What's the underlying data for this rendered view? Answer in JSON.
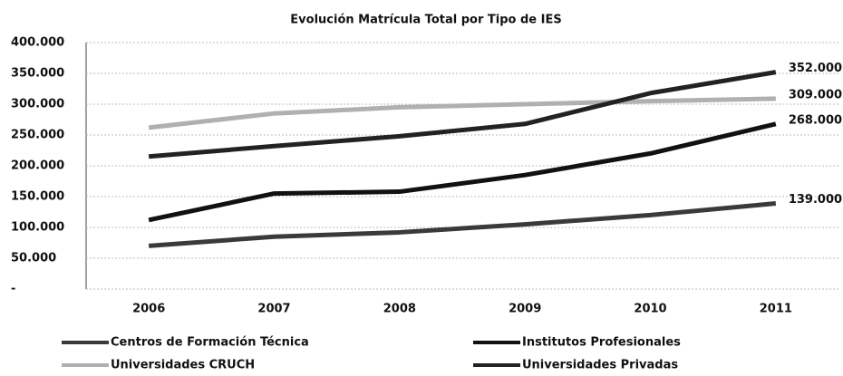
{
  "chart_data": {
    "type": "line",
    "title": "Evolución Matrícula Total por Tipo de IES",
    "categories": [
      "2006",
      "2007",
      "2008",
      "2009",
      "2010",
      "2011"
    ],
    "series": [
      {
        "name": "Centros de Formación Técnica",
        "color": "#3a3a3a",
        "values": [
          70000,
          85000,
          92000,
          105000,
          120000,
          139000
        ],
        "value_labels": [
          null,
          null,
          null,
          null,
          null,
          "139.000"
        ]
      },
      {
        "name": "Institutos Profesionales",
        "color": "#111111",
        "values": [
          112000,
          155000,
          158000,
          185000,
          220000,
          268000
        ],
        "value_labels": [
          null,
          null,
          null,
          null,
          null,
          "268.000,"
        ]
      },
      {
        "name": "Universidades CRUCH",
        "color": "#b0b0b0",
        "values": [
          262000,
          285000,
          295000,
          300000,
          305000,
          309000
        ],
        "value_labels": [
          null,
          null,
          null,
          null,
          null,
          "309.000"
        ]
      },
      {
        "name": "Universidades Privadas",
        "color": "#222222",
        "values": [
          215000,
          232000,
          248000,
          268000,
          318000,
          352000
        ],
        "value_labels": [
          null,
          null,
          null,
          null,
          null,
          "352.000"
        ]
      }
    ],
    "ylim": [
      0,
      400000
    ],
    "yticks": [
      {
        "value": 0,
        "label": "-"
      },
      {
        "value": 50000,
        "label": "50.000"
      },
      {
        "value": 100000,
        "label": "100.000"
      },
      {
        "value": 150000,
        "label": "150.000"
      },
      {
        "value": 200000,
        "label": "200.000"
      },
      {
        "value": 250000,
        "label": "250.000"
      },
      {
        "value": 300000,
        "label": "300.000"
      },
      {
        "value": 350000,
        "label": "350.000"
      },
      {
        "value": 400000,
        "label": "400.000"
      }
    ],
    "grid": true
  }
}
